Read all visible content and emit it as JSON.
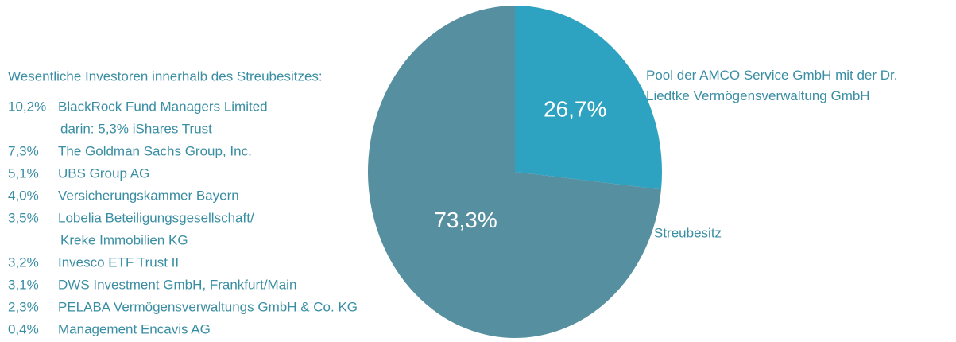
{
  "chart_data": {
    "type": "pie",
    "categories": [
      "Pool der AMCO Service GmbH mit der Dr. Liedtke Vermögensverwaltung GmbH",
      "Streubesitz"
    ],
    "values": [
      26.7,
      73.3
    ],
    "value_labels": [
      "26,7%",
      "73,3%"
    ],
    "colors": [
      "#2ea3c1",
      "#5690a0"
    ]
  },
  "investors": {
    "title": "Wesentliche Investoren innerhalb des Streubesitzes:",
    "items": [
      {
        "share": "10,2%",
        "lines": [
          "BlackRock Fund Managers Limited",
          "darin: 5,3% iShares Trust"
        ]
      },
      {
        "share": "7,3%",
        "lines": [
          "The Goldman Sachs Group, Inc."
        ]
      },
      {
        "share": "5,1%",
        "lines": [
          "UBS Group AG"
        ]
      },
      {
        "share": "4,0%",
        "lines": [
          "Versicherungskammer Bayern"
        ]
      },
      {
        "share": "3,5%",
        "lines": [
          "Lobelia Beteiligungsgesellschaft/",
          "Kreke Immobilien KG"
        ]
      },
      {
        "share": "3,2%",
        "lines": [
          "Invesco ETF Trust II"
        ]
      },
      {
        "share": "3,1%",
        "lines": [
          "DWS Investment GmbH, Frankfurt/Main"
        ]
      },
      {
        "share": "2,3%",
        "lines": [
          "PELABA Vermögensverwaltungs GmbH & Co. KG"
        ]
      },
      {
        "share": "0,4%",
        "lines": [
          "Management Encavis AG"
        ]
      }
    ]
  }
}
